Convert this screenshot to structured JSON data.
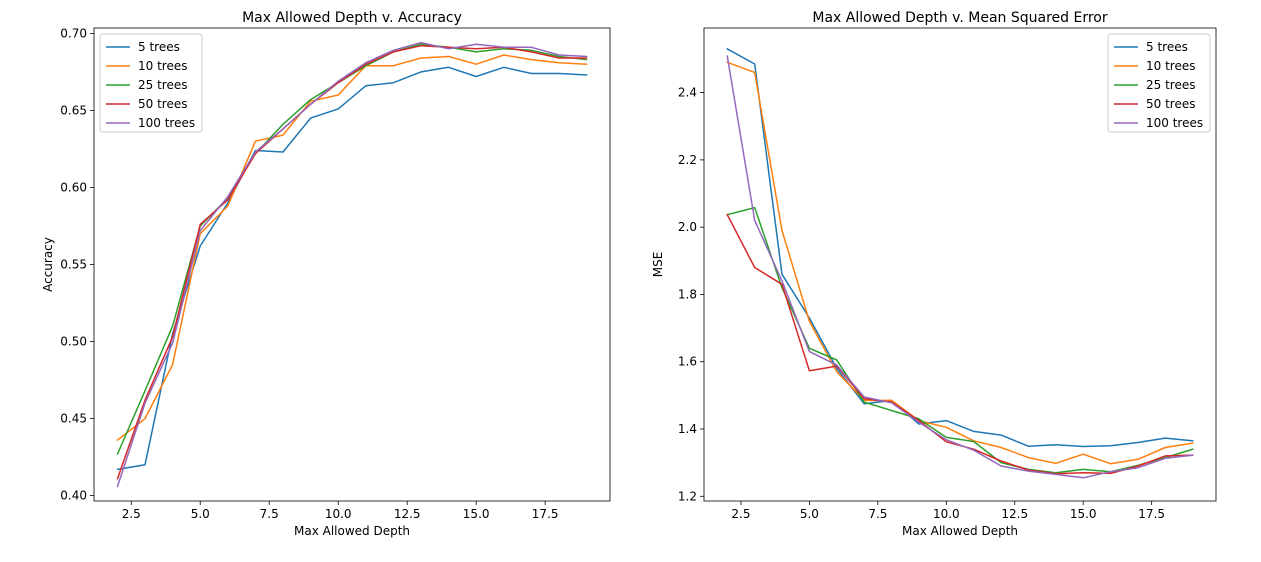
{
  "chart_data": [
    {
      "type": "line",
      "title": "Max Allowed Depth v. Accuracy",
      "xlabel": "Max Allowed Depth",
      "ylabel": "Accuracy",
      "xlim": [
        1.15,
        19.85
      ],
      "ylim": [
        0.3965,
        0.7035
      ],
      "xticks": [
        2.5,
        5.0,
        7.5,
        10.0,
        12.5,
        15.0,
        17.5
      ],
      "xtick_labels": [
        "2.5",
        "5.0",
        "7.5",
        "10.0",
        "12.5",
        "15.0",
        "17.5"
      ],
      "yticks": [
        0.4,
        0.45,
        0.5,
        0.55,
        0.6,
        0.65,
        0.7
      ],
      "ytick_labels": [
        "0.40",
        "0.45",
        "0.50",
        "0.55",
        "0.60",
        "0.65",
        "0.70"
      ],
      "grid": false,
      "legend_position": "top-left",
      "x": [
        2,
        3,
        4,
        5,
        6,
        7,
        8,
        9,
        10,
        11,
        12,
        13,
        14,
        15,
        16,
        17,
        18,
        19
      ],
      "series": [
        {
          "name": "5 trees",
          "color": "#1f77b4",
          "values": [
            0.417,
            0.42,
            0.505,
            0.562,
            0.59,
            0.624,
            0.623,
            0.645,
            0.651,
            0.666,
            0.668,
            0.675,
            0.678,
            0.672,
            0.678,
            0.674,
            0.674,
            0.673
          ]
        },
        {
          "name": "10 trees",
          "color": "#ff7f0e",
          "values": [
            0.436,
            0.45,
            0.485,
            0.57,
            0.588,
            0.63,
            0.634,
            0.656,
            0.66,
            0.679,
            0.679,
            0.684,
            0.685,
            0.68,
            0.686,
            0.683,
            0.681,
            0.68
          ]
        },
        {
          "name": "25 trees",
          "color": "#2ca02c",
          "values": [
            0.427,
            0.468,
            0.51,
            0.575,
            0.593,
            0.622,
            0.641,
            0.657,
            0.668,
            0.679,
            0.688,
            0.693,
            0.691,
            0.688,
            0.69,
            0.689,
            0.685,
            0.683
          ]
        },
        {
          "name": "50 trees",
          "color": "#d62728",
          "values": [
            0.411,
            0.462,
            0.503,
            0.576,
            0.592,
            0.622,
            0.638,
            0.654,
            0.668,
            0.68,
            0.688,
            0.692,
            0.691,
            0.69,
            0.691,
            0.688,
            0.684,
            0.684
          ]
        },
        {
          "name": "100 trees",
          "color": "#9467bd",
          "values": [
            0.406,
            0.46,
            0.499,
            0.572,
            0.594,
            0.623,
            0.638,
            0.654,
            0.669,
            0.681,
            0.689,
            0.694,
            0.69,
            0.693,
            0.691,
            0.691,
            0.686,
            0.685
          ]
        }
      ]
    },
    {
      "type": "line",
      "title": "Max Allowed Depth v. Mean Squared Error",
      "xlabel": "Max Allowed Depth",
      "ylabel": "MSE",
      "xlim": [
        1.15,
        19.85
      ],
      "ylim": [
        1.186,
        2.592
      ],
      "xticks": [
        2.5,
        5.0,
        7.5,
        10.0,
        12.5,
        15.0,
        17.5
      ],
      "xtick_labels": [
        "2.5",
        "5.0",
        "7.5",
        "10.0",
        "12.5",
        "15.0",
        "17.5"
      ],
      "yticks": [
        1.2,
        1.4,
        1.6,
        1.8,
        2.0,
        2.2,
        2.4
      ],
      "ytick_labels": [
        "1.2",
        "1.4",
        "1.6",
        "1.8",
        "2.0",
        "2.2",
        "2.4"
      ],
      "grid": false,
      "legend_position": "top-right",
      "x": [
        2,
        3,
        4,
        5,
        6,
        7,
        8,
        9,
        10,
        11,
        12,
        13,
        14,
        15,
        16,
        17,
        18,
        19
      ],
      "series": [
        {
          "name": "5 trees",
          "color": "#1f77b4",
          "values": [
            2.53,
            2.485,
            1.86,
            1.73,
            1.58,
            1.475,
            1.485,
            1.415,
            1.425,
            1.393,
            1.382,
            1.349,
            1.353,
            1.348,
            1.35,
            1.36,
            1.373,
            1.365
          ]
        },
        {
          "name": "10 trees",
          "color": "#ff7f0e",
          "values": [
            2.49,
            2.46,
            1.99,
            1.72,
            1.57,
            1.485,
            1.485,
            1.425,
            1.405,
            1.365,
            1.345,
            1.315,
            1.298,
            1.325,
            1.297,
            1.31,
            1.345,
            1.358
          ]
        },
        {
          "name": "25 trees",
          "color": "#2ca02c",
          "values": [
            2.037,
            2.058,
            1.82,
            1.64,
            1.605,
            1.48,
            1.455,
            1.43,
            1.375,
            1.363,
            1.3,
            1.28,
            1.27,
            1.28,
            1.273,
            1.292,
            1.315,
            1.34
          ]
        },
        {
          "name": "50 trees",
          "color": "#d62728",
          "values": [
            2.037,
            1.88,
            1.83,
            1.573,
            1.587,
            1.49,
            1.48,
            1.425,
            1.362,
            1.34,
            1.305,
            1.278,
            1.267,
            1.27,
            1.268,
            1.29,
            1.32,
            1.322
          ]
        },
        {
          "name": "100 trees",
          "color": "#9467bd",
          "values": [
            2.508,
            2.02,
            1.84,
            1.63,
            1.59,
            1.495,
            1.478,
            1.42,
            1.368,
            1.337,
            1.29,
            1.275,
            1.265,
            1.255,
            1.273,
            1.285,
            1.313,
            1.322
          ]
        }
      ]
    }
  ]
}
